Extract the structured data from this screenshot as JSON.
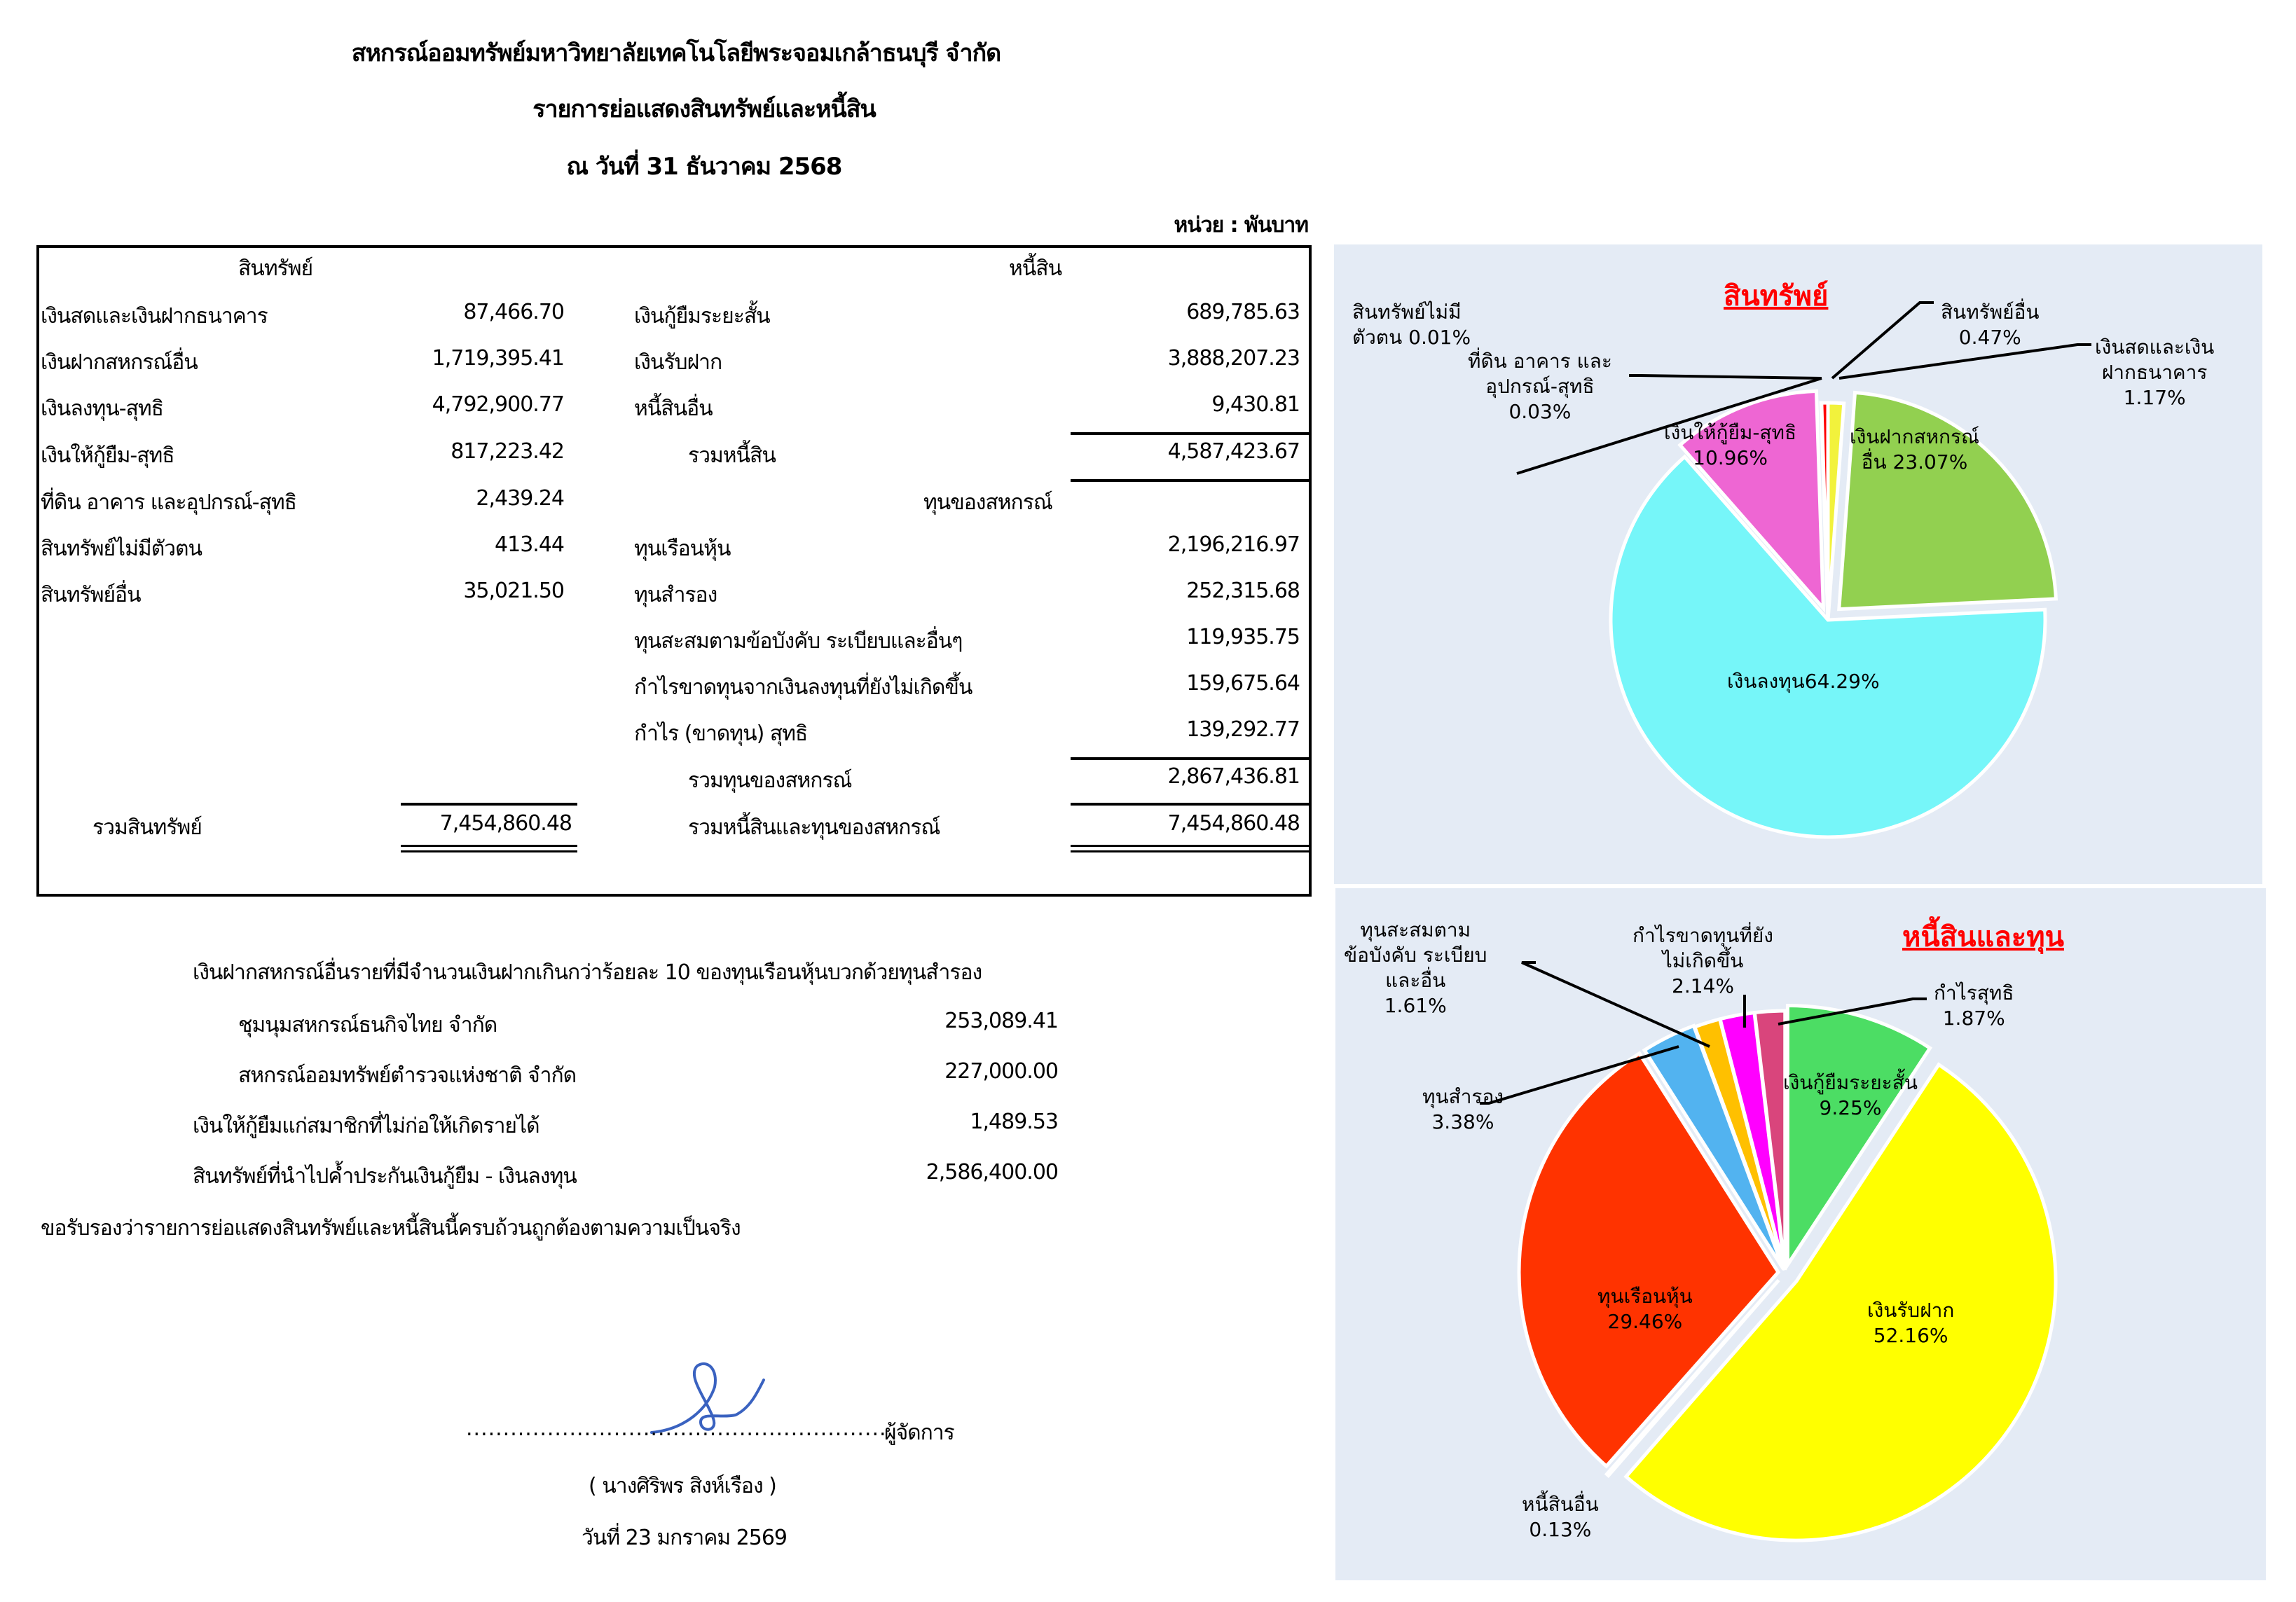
{
  "header": {
    "org_name": "สหกรณ์ออมทรัพย์มหาวิทยาลัยเทคโนโลยีพระจอมเกล้าธนบุรี  จำกัด",
    "report_title": "รายการย่อแสดงสินทรัพย์และหนี้สิน",
    "as_of": "ณ วันที่ 31  ธันวาคม  2568",
    "unit": "หน่วย : พันบาท"
  },
  "balance_sheet": {
    "assets_header": "สินทรัพย์",
    "liabilities_header": "หนี้สิน",
    "equity_header": "ทุนของสหกรณ์",
    "assets": [
      {
        "label": "เงินสดและเงินฝากธนาคาร",
        "value": "87,466.70"
      },
      {
        "label": "เงินฝากสหกรณ์อื่น",
        "value": "1,719,395.41"
      },
      {
        "label": "เงินลงทุน-สุทธิ",
        "value": "4,792,900.77"
      },
      {
        "label": "เงินให้กู้ยืม-สุทธิ",
        "value": "817,223.42"
      },
      {
        "label": "ที่ดิน อาคาร และอุปกรณ์-สุทธิ",
        "value": "2,439.24"
      },
      {
        "label": "สินทรัพย์ไม่มีตัวตน",
        "value": "413.44"
      },
      {
        "label": "สินทรัพย์อื่น",
        "value": "35,021.50"
      }
    ],
    "liabilities": [
      {
        "label": "เงินกู้ยืมระยะสั้น",
        "value": "689,785.63"
      },
      {
        "label": "เงินรับฝาก",
        "value": "3,888,207.23"
      },
      {
        "label": "หนี้สินอื่น",
        "value": "9,430.81"
      }
    ],
    "total_liabilities": {
      "label": "รวมหนี้สิน",
      "value": "4,587,423.67"
    },
    "equity": [
      {
        "label": "ทุนเรือนหุ้น",
        "value": "2,196,216.97"
      },
      {
        "label": "ทุนสำรอง",
        "value": "252,315.68"
      },
      {
        "label": "ทุนสะสมตามข้อบังคับ ระเบียบและอื่นๆ",
        "value": "119,935.75"
      },
      {
        "label": "กำไรขาดทุนจากเงินลงทุนที่ยังไม่เกิดขึ้น",
        "value": "159,675.64"
      },
      {
        "label": "กำไร (ขาดทุน) สุทธิ",
        "value": "139,292.77"
      }
    ],
    "total_equity": {
      "label": "รวมทุนของสหกรณ์",
      "value": "2,867,436.81"
    },
    "total_assets": {
      "label": "รวมสินทรัพย์",
      "value": "7,454,860.48"
    },
    "total_liabilities_equity": {
      "label": "รวมหนี้สินและทุนของสหกรณ์",
      "value": "7,454,860.48"
    }
  },
  "notes": {
    "deposits_heading": "เงินฝากสหกรณ์อื่นรายที่มีจำนวนเงินฝากเกินกว่าร้อยละ 10 ของทุนเรือนหุ้นบวกด้วยทุนสำรอง",
    "items": [
      {
        "label": "ชุมนุมสหกรณ์ธนกิจไทย จำกัด",
        "value": "253,089.41"
      },
      {
        "label": "สหกรณ์ออมทรัพย์ตำรวจแห่งชาติ จำกัด",
        "value": "227,000.00"
      },
      {
        "label": "เงินให้กู้ยืมแก่สมาชิกที่ไม่ก่อให้เกิดรายได้",
        "value": "1,489.53"
      },
      {
        "label": "สินทรัพย์ที่นำไปค้ำประกันเงินกู้ยืม - เงินลงทุน",
        "value": "2,586,400.00"
      }
    ],
    "certification": "ขอรับรองว่ารายการย่อแสดงสินทรัพย์และหนี้สินนี้ครบถ้วนถูกต้องตามความเป็นจริง"
  },
  "signature": {
    "dots": "..........................................................",
    "role": "ผู้จัดการ",
    "name": "( นางศิริพร  สิงห์เรือง )",
    "date": "วันที่ 23 มกราคม 2569",
    "ink_color": "#3a62c0"
  },
  "chart_data": [
    {
      "type": "pie",
      "title": "สินทรัพย์",
      "start": "12 o'clock, clockwise",
      "slices": [
        {
          "name": "เงินสดและเงินฝากธนาคาร",
          "label": "เงินสดและเงิน\nฝากธนาคาร\n1.17%",
          "value": 1.17,
          "color": "#f2f23c",
          "explode": 0
        },
        {
          "name": "เงินฝากสหกรณ์อื่น",
          "label": "เงินฝากสหกรณ์\nอื่น 23.07%",
          "value": 23.07,
          "color": "#92d050",
          "explode": 22
        },
        {
          "name": "เงินลงทุน",
          "label": "เงินลงทุน64.29%",
          "value": 64.29,
          "color": "#76f6f9",
          "explode": 0
        },
        {
          "name": "เงินให้กู้ยืม-สุทธิ",
          "label": "เงินให้กู้ยืม-สุทธิ\n10.96%",
          "value": 10.96,
          "color": "#ee66d3",
          "explode": 18
        },
        {
          "name": "ที่ดิน อาคาร และอุปกรณ์-สุทธิ",
          "label": "ที่ดิน อาคาร และ\nอุปกรณ์-สุทธิ\n0.03%",
          "value": 0.03,
          "color": "#c0c0c0",
          "explode": 0
        },
        {
          "name": "สินทรัพย์ไม่มีตัวตน",
          "label": "สินทรัพย์ไม่มี\nตัวตน 0.01%",
          "value": 0.01,
          "color": "#7f7f7f",
          "explode": 0
        },
        {
          "name": "สินทรัพย์อื่น",
          "label": "สินทรัพย์อื่น\n0.47%",
          "value": 0.47,
          "color": "#ff0000",
          "explode": 0
        }
      ]
    },
    {
      "type": "pie",
      "title": "หนี้สินและทุน",
      "start": "12 o'clock, clockwise",
      "slices": [
        {
          "name": "เงินกู้ยืมระยะสั้น",
          "label": "เงินกู้ยืมระยะสั้น\n9.25%",
          "value": 9.25,
          "color": "#4cdd64",
          "explode": 12
        },
        {
          "name": "เงินรับฝาก",
          "label": "เงินรับฝาก\n52.16%",
          "value": 52.16,
          "color": "#ffff00",
          "explode": 20
        },
        {
          "name": "หนี้สินอื่น",
          "label": "หนี้สินอื่น\n0.13%",
          "value": 0.13,
          "color": "#ffffff",
          "explode": 14
        },
        {
          "name": "ทุนเรือนหุ้น",
          "label": "ทุนเรือนหุ้น\n29.46%",
          "value": 29.46,
          "color": "#ff3300",
          "explode": 10
        },
        {
          "name": "ทุนสำรอง",
          "label": "ทุนสำรอง\n3.38%",
          "value": 3.38,
          "color": "#52b3f0",
          "explode": 6
        },
        {
          "name": "ทุนสะสมตามข้อบังคับ ระเบียบและอื่น",
          "label": "ทุนสะสมตาม\nข้อบังคับ ระเบียบ\nและอื่น\n1.61%",
          "value": 1.61,
          "color": "#ffc000",
          "explode": 4
        },
        {
          "name": "กำไรขาดทุนที่ยังไม่เกิดขึ้น",
          "label": "กำไรขาดทุนที่ยัง\nไม่เกิดขึ้น\n2.14%",
          "value": 2.14,
          "color": "#ff00ff",
          "explode": 4
        },
        {
          "name": "กำไรสุทธิ",
          "label": "กำไรสุทธิ\n1.87%",
          "value": 1.87,
          "color": "#d9457c",
          "explode": 4
        }
      ]
    }
  ]
}
